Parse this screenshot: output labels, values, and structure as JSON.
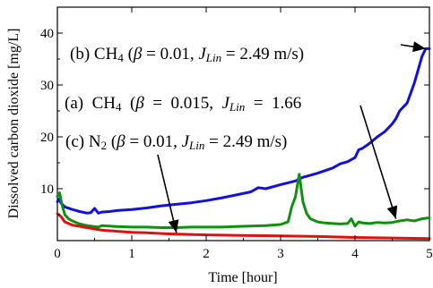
{
  "chart_data": {
    "type": "line",
    "xlabel": "Time [hour]",
    "ylabel": "Dissolved carbon dioxide [mg/L]",
    "xlim": [
      0,
      5
    ],
    "ylim": [
      0,
      45
    ],
    "x_ticks": [
      0,
      1,
      2,
      3,
      4,
      5
    ],
    "y_ticks": [
      10,
      20,
      30,
      40
    ],
    "grid": false,
    "annotations": [
      {
        "id": "b",
        "segments": [
          {
            "t": "(b) CH",
            "s": "normal"
          },
          {
            "t": "4",
            "s": "small"
          },
          {
            "t": " (",
            "s": "normal"
          },
          {
            "t": "β",
            "s": "italic"
          },
          {
            "t": " = 0.01, ",
            "s": "normal"
          },
          {
            "t": "J",
            "s": "italic"
          },
          {
            "t": "Lin",
            "s": "italic-small"
          },
          {
            "t": " = 2.49 m/s)",
            "s": "normal"
          }
        ],
        "arrow_to": [
          4.95,
          37.0
        ]
      },
      {
        "id": "a",
        "segments": [
          {
            "t": "(a)  CH",
            "s": "normal"
          },
          {
            "t": "4",
            "s": "small"
          },
          {
            "t": "  (",
            "s": "normal"
          },
          {
            "t": "β",
            "s": "italic"
          },
          {
            "t": "  =  0.015,  ",
            "s": "normal"
          },
          {
            "t": "J",
            "s": "italic"
          },
          {
            "t": "Lin",
            "s": "italic-small"
          },
          {
            "t": "  =  1.66",
            "s": "normal"
          }
        ],
        "arrow_to": [
          4.55,
          4.2
        ]
      },
      {
        "id": "c",
        "segments": [
          {
            "t": "(c) N",
            "s": "normal"
          },
          {
            "t": "2",
            "s": "small"
          },
          {
            "t": " (",
            "s": "normal"
          },
          {
            "t": "β",
            "s": "italic"
          },
          {
            "t": " = 0.01, ",
            "s": "normal"
          },
          {
            "t": "J",
            "s": "italic"
          },
          {
            "t": "Lin",
            "s": "italic-small"
          },
          {
            "t": " = 2.49 m/s)",
            "s": "normal"
          }
        ],
        "arrow_to": [
          1.6,
          1.5
        ]
      }
    ],
    "series": [
      {
        "id": "b",
        "color": "#1010e0",
        "x": [
          0.0,
          0.02,
          0.05,
          0.1,
          0.2,
          0.3,
          0.4,
          0.45,
          0.5,
          0.55,
          0.6,
          0.7,
          0.8,
          1.0,
          1.2,
          1.4,
          1.6,
          1.8,
          2.0,
          2.2,
          2.4,
          2.6,
          2.7,
          2.8,
          3.0,
          3.2,
          3.3,
          3.4,
          3.5,
          3.6,
          3.7,
          3.8,
          3.9,
          4.0,
          4.05,
          4.1,
          4.2,
          4.3,
          4.4,
          4.5,
          4.55,
          4.6,
          4.65,
          4.7,
          4.75,
          4.8,
          4.85,
          4.9,
          4.95,
          5.0
        ],
        "y": [
          7.5,
          8.0,
          7.2,
          6.5,
          6.0,
          5.6,
          5.3,
          5.4,
          6.2,
          5.3,
          5.5,
          5.6,
          5.8,
          6.0,
          6.3,
          6.7,
          7.0,
          7.3,
          7.7,
          8.2,
          8.8,
          9.4,
          10.2,
          10.0,
          10.8,
          11.5,
          12.2,
          12.6,
          13.0,
          13.5,
          14.0,
          14.8,
          15.2,
          16.0,
          17.5,
          17.8,
          18.8,
          20.0,
          21.0,
          22.5,
          23.5,
          25.0,
          25.8,
          26.5,
          28.5,
          30.5,
          33.0,
          35.5,
          37.0,
          37.0
        ]
      },
      {
        "id": "a",
        "color": "#109010",
        "x": [
          0.0,
          0.03,
          0.06,
          0.1,
          0.15,
          0.2,
          0.3,
          0.4,
          0.5,
          0.55,
          0.6,
          0.7,
          0.8,
          1.0,
          1.2,
          1.4,
          1.6,
          1.8,
          2.0,
          2.2,
          2.4,
          2.6,
          2.8,
          3.0,
          3.1,
          3.15,
          3.2,
          3.25,
          3.3,
          3.35,
          3.4,
          3.5,
          3.6,
          3.7,
          3.8,
          3.9,
          3.95,
          4.0,
          4.05,
          4.1,
          4.2,
          4.3,
          4.4,
          4.5,
          4.6,
          4.7,
          4.8,
          4.9,
          5.0
        ],
        "y": [
          8.5,
          9.2,
          7.0,
          5.0,
          4.2,
          3.8,
          3.2,
          2.9,
          2.7,
          2.6,
          2.9,
          2.8,
          2.7,
          2.6,
          2.6,
          2.5,
          2.5,
          2.6,
          2.6,
          2.6,
          2.7,
          2.8,
          2.9,
          3.1,
          3.6,
          6.5,
          8.5,
          12.8,
          7.5,
          5.2,
          4.2,
          3.6,
          3.4,
          3.3,
          3.2,
          3.3,
          4.2,
          2.8,
          3.6,
          3.4,
          3.3,
          3.5,
          3.4,
          3.5,
          3.8,
          4.0,
          3.8,
          4.2,
          4.4
        ]
      },
      {
        "id": "c",
        "color": "#e01010",
        "x": [
          0.0,
          0.05,
          0.1,
          0.2,
          0.4,
          0.6,
          0.8,
          1.0,
          1.2,
          1.5,
          2.0,
          2.5,
          3.0,
          3.5,
          4.0,
          4.5,
          5.0
        ],
        "y": [
          5.2,
          4.6,
          3.6,
          3.0,
          2.5,
          2.0,
          1.8,
          1.6,
          1.5,
          1.3,
          1.1,
          1.0,
          0.9,
          0.8,
          0.6,
          0.5,
          0.4
        ]
      }
    ]
  }
}
